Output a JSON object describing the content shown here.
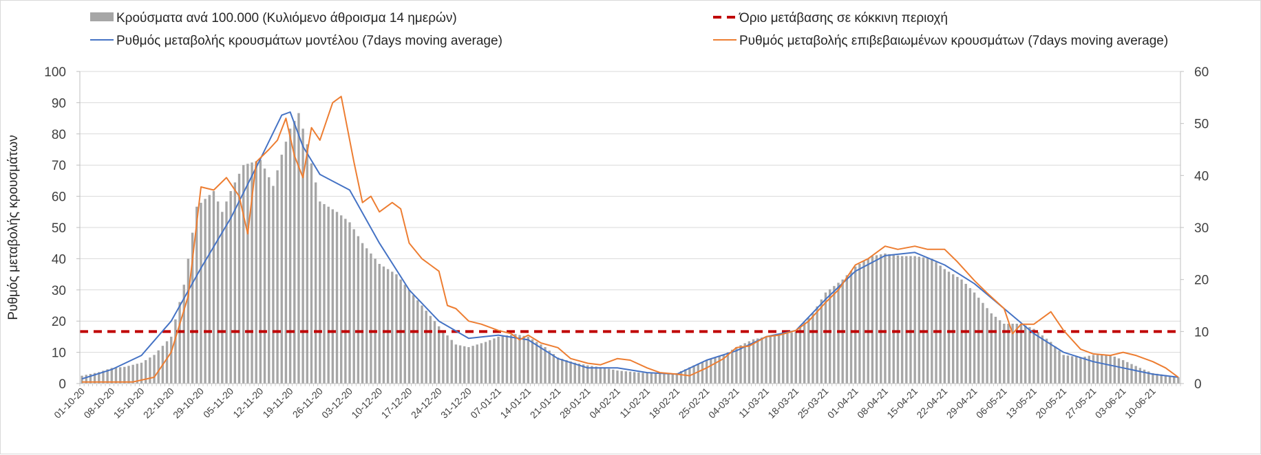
{
  "chart_data": {
    "type": "bar+line",
    "title": "",
    "ylabel": "Ρυθμός μεταβολής κρουσμάτων",
    "y2label": "",
    "ylim": [
      0,
      100
    ],
    "y2lim": [
      0,
      60
    ],
    "yticks": [
      0,
      10,
      20,
      30,
      40,
      50,
      60,
      70,
      80,
      90,
      100
    ],
    "y2ticks": [
      0,
      10,
      20,
      30,
      40,
      50,
      60
    ],
    "grid": true,
    "legend_position": "top",
    "x_start": "2020-10-01",
    "x_end": "2021-06-16",
    "x_tick_labels": [
      "01-10-20",
      "08-10-20",
      "15-10-20",
      "22-10-20",
      "29-10-20",
      "05-11-20",
      "12-11-20",
      "19-11-20",
      "26-11-20",
      "03-12-20",
      "10-12-20",
      "17-12-20",
      "24-12-20",
      "31-12-20",
      "07-01-21",
      "14-01-21",
      "21-01-21",
      "28-01-21",
      "04-02-21",
      "11-02-21",
      "18-02-21",
      "25-02-21",
      "04-03-21",
      "11-03-21",
      "18-03-21",
      "25-03-21",
      "01-04-21",
      "08-04-21",
      "15-04-21",
      "22-04-21",
      "29-04-21",
      "06-05-21",
      "13-05-21",
      "20-05-21",
      "27-05-21",
      "03-06-21",
      "10-06-21"
    ],
    "series": [
      {
        "name": "Κρούσματα ανά 100.000 (Κυλιόμενο άθροισμα 14 ημερών)",
        "type": "bar",
        "axis": "right",
        "color": "#a6a6a6",
        "points": [
          [
            "2020-10-01",
            1.5
          ],
          [
            "2020-10-05",
            2.2
          ],
          [
            "2020-10-08",
            3.0
          ],
          [
            "2020-10-11",
            3.2
          ],
          [
            "2020-10-15",
            4.0
          ],
          [
            "2020-10-18",
            5.5
          ],
          [
            "2020-10-22",
            9.0
          ],
          [
            "2020-10-25",
            19
          ],
          [
            "2020-10-28",
            34
          ],
          [
            "2020-11-01",
            37
          ],
          [
            "2020-11-03",
            33
          ],
          [
            "2020-11-05",
            37
          ],
          [
            "2020-11-08",
            42
          ],
          [
            "2020-11-12",
            43
          ],
          [
            "2020-11-15",
            38
          ],
          [
            "2020-11-17",
            44
          ],
          [
            "2020-11-19",
            49
          ],
          [
            "2020-11-21",
            52
          ],
          [
            "2020-11-23",
            46
          ],
          [
            "2020-11-26",
            35
          ],
          [
            "2020-11-30",
            33
          ],
          [
            "2020-12-03",
            31
          ],
          [
            "2020-12-06",
            27
          ],
          [
            "2020-12-10",
            23
          ],
          [
            "2020-12-14",
            21
          ],
          [
            "2020-12-17",
            18
          ],
          [
            "2020-12-21",
            14
          ],
          [
            "2020-12-24",
            11
          ],
          [
            "2020-12-28",
            7.5
          ],
          [
            "2020-12-31",
            7.0
          ],
          [
            "2021-01-04",
            8.0
          ],
          [
            "2021-01-07",
            9.0
          ],
          [
            "2021-01-11",
            9.5
          ],
          [
            "2021-01-14",
            9.0
          ],
          [
            "2021-01-18",
            7.0
          ],
          [
            "2021-01-21",
            5.0
          ],
          [
            "2021-01-25",
            4.0
          ],
          [
            "2021-01-28",
            3.5
          ],
          [
            "2021-02-01",
            3.0
          ],
          [
            "2021-02-04",
            2.5
          ],
          [
            "2021-02-08",
            2.2
          ],
          [
            "2021-02-11",
            2.0
          ],
          [
            "2021-02-15",
            1.8
          ],
          [
            "2021-02-18",
            2.0
          ],
          [
            "2021-02-22",
            3.5
          ],
          [
            "2021-02-25",
            4.5
          ],
          [
            "2021-03-01",
            5.5
          ],
          [
            "2021-03-04",
            7.0
          ],
          [
            "2021-03-08",
            8.5
          ],
          [
            "2021-03-11",
            9.0
          ],
          [
            "2021-03-15",
            9.5
          ],
          [
            "2021-03-18",
            10.0
          ],
          [
            "2021-03-22",
            13.5
          ],
          [
            "2021-03-25",
            17.5
          ],
          [
            "2021-03-29",
            20.0
          ],
          [
            "2021-04-01",
            22.5
          ],
          [
            "2021-04-05",
            24.5
          ],
          [
            "2021-04-08",
            25.0
          ],
          [
            "2021-04-12",
            24.5
          ],
          [
            "2021-04-15",
            24.5
          ],
          [
            "2021-04-19",
            24.0
          ],
          [
            "2021-04-22",
            22.0
          ],
          [
            "2021-04-26",
            20.0
          ],
          [
            "2021-04-29",
            17.5
          ],
          [
            "2021-05-03",
            13.5
          ],
          [
            "2021-05-06",
            11.5
          ],
          [
            "2021-05-10",
            11.5
          ],
          [
            "2021-05-13",
            10.5
          ],
          [
            "2021-05-17",
            8.0
          ],
          [
            "2021-05-20",
            5.5
          ],
          [
            "2021-05-24",
            5.0
          ],
          [
            "2021-05-27",
            5.5
          ],
          [
            "2021-05-31",
            5.5
          ],
          [
            "2021-06-03",
            4.5
          ],
          [
            "2021-06-07",
            3.0
          ],
          [
            "2021-06-10",
            2.0
          ],
          [
            "2021-06-14",
            1.5
          ],
          [
            "2021-06-16",
            1.2
          ]
        ]
      },
      {
        "name": "Όριο μετάβασης σε κόκκινη περιοχή",
        "type": "line",
        "style": "dashed",
        "axis": "right",
        "color": "#c00000",
        "value": 10
      },
      {
        "name": "Ρυθμός μεταβολής κρουσμάτων μοντέλου (7days moving average)",
        "type": "line",
        "axis": "left",
        "color": "#4472c4",
        "points": [
          [
            "2020-10-01",
            1.5
          ],
          [
            "2020-10-08",
            4.5
          ],
          [
            "2020-10-15",
            9
          ],
          [
            "2020-10-22",
            20
          ],
          [
            "2020-10-29",
            37
          ],
          [
            "2020-11-05",
            53
          ],
          [
            "2020-11-12",
            72
          ],
          [
            "2020-11-17",
            86
          ],
          [
            "2020-11-19",
            87
          ],
          [
            "2020-11-22",
            76
          ],
          [
            "2020-11-26",
            67
          ],
          [
            "2020-12-03",
            62
          ],
          [
            "2020-12-10",
            45
          ],
          [
            "2020-12-17",
            30
          ],
          [
            "2020-12-24",
            20
          ],
          [
            "2020-12-31",
            14.5
          ],
          [
            "2021-01-07",
            15.5
          ],
          [
            "2021-01-14",
            14
          ],
          [
            "2021-01-21",
            8
          ],
          [
            "2021-01-28",
            5
          ],
          [
            "2021-02-04",
            5
          ],
          [
            "2021-02-11",
            3.5
          ],
          [
            "2021-02-18",
            3
          ],
          [
            "2021-02-25",
            7.5
          ],
          [
            "2021-03-04",
            10.5
          ],
          [
            "2021-03-11",
            15
          ],
          [
            "2021-03-18",
            17
          ],
          [
            "2021-03-25",
            27
          ],
          [
            "2021-04-01",
            36
          ],
          [
            "2021-04-08",
            41
          ],
          [
            "2021-04-15",
            42
          ],
          [
            "2021-04-22",
            38
          ],
          [
            "2021-04-29",
            32
          ],
          [
            "2021-05-06",
            24
          ],
          [
            "2021-05-13",
            16
          ],
          [
            "2021-05-20",
            10
          ],
          [
            "2021-05-27",
            7
          ],
          [
            "2021-06-03",
            5
          ],
          [
            "2021-06-10",
            3
          ],
          [
            "2021-06-16",
            2
          ]
        ]
      },
      {
        "name": "Ρυθμός μεταβολής επιβεβαιωμένων κρουσμάτων (7days moving average)",
        "type": "line",
        "axis": "left",
        "color": "#ed7d31",
        "points": [
          [
            "2020-10-01",
            0.5
          ],
          [
            "2020-10-08",
            0.5
          ],
          [
            "2020-10-13",
            0.5
          ],
          [
            "2020-10-18",
            2
          ],
          [
            "2020-10-22",
            10
          ],
          [
            "2020-10-26",
            28
          ],
          [
            "2020-10-29",
            63
          ],
          [
            "2020-11-01",
            62
          ],
          [
            "2020-11-04",
            66
          ],
          [
            "2020-11-07",
            60
          ],
          [
            "2020-11-09",
            48
          ],
          [
            "2020-11-11",
            71
          ],
          [
            "2020-11-14",
            75
          ],
          [
            "2020-11-16",
            78
          ],
          [
            "2020-11-18",
            85
          ],
          [
            "2020-11-20",
            73
          ],
          [
            "2020-11-22",
            66
          ],
          [
            "2020-11-24",
            82
          ],
          [
            "2020-11-26",
            78
          ],
          [
            "2020-11-29",
            90
          ],
          [
            "2020-12-01",
            92
          ],
          [
            "2020-12-04",
            71
          ],
          [
            "2020-12-06",
            58
          ],
          [
            "2020-12-08",
            60
          ],
          [
            "2020-12-10",
            55
          ],
          [
            "2020-12-13",
            58
          ],
          [
            "2020-12-15",
            56
          ],
          [
            "2020-12-17",
            45
          ],
          [
            "2020-12-20",
            40
          ],
          [
            "2020-12-22",
            38
          ],
          [
            "2020-12-24",
            36
          ],
          [
            "2020-12-26",
            25
          ],
          [
            "2020-12-28",
            24
          ],
          [
            "2020-12-31",
            20
          ],
          [
            "2021-01-03",
            19
          ],
          [
            "2021-01-07",
            17
          ],
          [
            "2021-01-10",
            16
          ],
          [
            "2021-01-12",
            14
          ],
          [
            "2021-01-14",
            15.5
          ],
          [
            "2021-01-17",
            13
          ],
          [
            "2021-01-21",
            11.5
          ],
          [
            "2021-01-24",
            8
          ],
          [
            "2021-01-28",
            6.5
          ],
          [
            "2021-01-31",
            6
          ],
          [
            "2021-02-04",
            8
          ],
          [
            "2021-02-07",
            7.5
          ],
          [
            "2021-02-11",
            5
          ],
          [
            "2021-02-14",
            3.5
          ],
          [
            "2021-02-18",
            3
          ],
          [
            "2021-02-21",
            2.5
          ],
          [
            "2021-02-25",
            5
          ],
          [
            "2021-03-01",
            8
          ],
          [
            "2021-03-04",
            11.5
          ],
          [
            "2021-03-07",
            12
          ],
          [
            "2021-03-11",
            15
          ],
          [
            "2021-03-14",
            15.5
          ],
          [
            "2021-03-18",
            17
          ],
          [
            "2021-03-21",
            20
          ],
          [
            "2021-03-25",
            26
          ],
          [
            "2021-03-28",
            30
          ],
          [
            "2021-04-01",
            38
          ],
          [
            "2021-04-04",
            40
          ],
          [
            "2021-04-08",
            44
          ],
          [
            "2021-04-11",
            43
          ],
          [
            "2021-04-15",
            44
          ],
          [
            "2021-04-18",
            43
          ],
          [
            "2021-04-22",
            43
          ],
          [
            "2021-04-25",
            39
          ],
          [
            "2021-04-29",
            33
          ],
          [
            "2021-05-02",
            29
          ],
          [
            "2021-05-06",
            24
          ],
          [
            "2021-05-08",
            16
          ],
          [
            "2021-05-10",
            19
          ],
          [
            "2021-05-13",
            19
          ],
          [
            "2021-05-17",
            23
          ],
          [
            "2021-05-20",
            17
          ],
          [
            "2021-05-24",
            11
          ],
          [
            "2021-05-27",
            9.5
          ],
          [
            "2021-05-31",
            9
          ],
          [
            "2021-06-03",
            10
          ],
          [
            "2021-06-06",
            9
          ],
          [
            "2021-06-10",
            7
          ],
          [
            "2021-06-13",
            5
          ],
          [
            "2021-06-16",
            2
          ]
        ]
      }
    ]
  }
}
